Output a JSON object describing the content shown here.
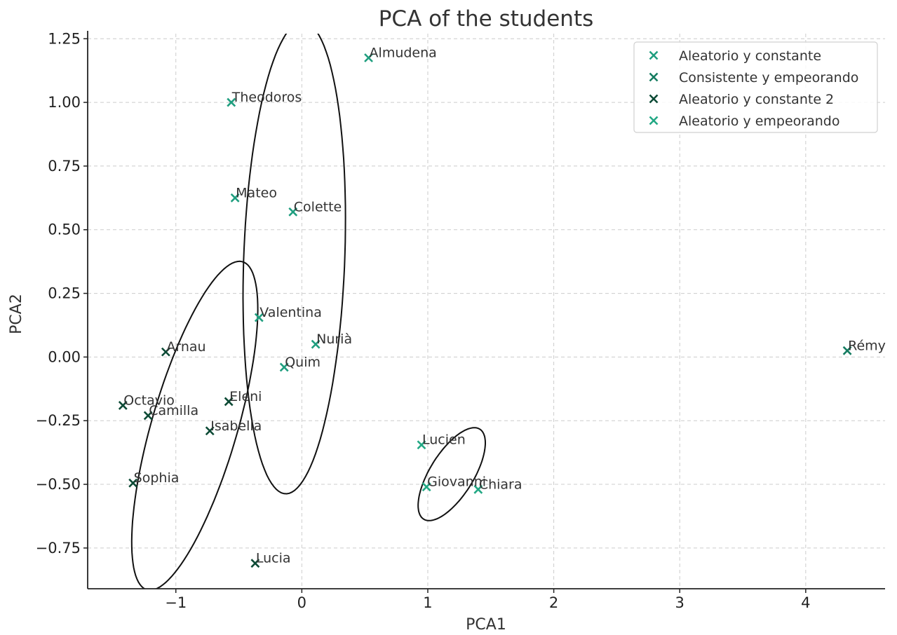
{
  "chart_data": {
    "type": "scatter",
    "title": "PCA of the students",
    "xlabel": "PCA1",
    "ylabel": "PCA2",
    "xlim": [
      -1.7,
      4.63
    ],
    "ylim": [
      -0.91,
      1.27
    ],
    "xticks": [
      -1,
      0,
      1,
      2,
      3,
      4
    ],
    "xtick_labels": [
      "−1",
      "0",
      "1",
      "2",
      "3",
      "4"
    ],
    "yticks": [
      -0.75,
      -0.5,
      -0.25,
      0.0,
      0.25,
      0.5,
      0.75,
      1.0,
      1.25
    ],
    "ytick_labels": [
      "−0.75",
      "−0.50",
      "−0.25",
      "0.00",
      "0.25",
      "0.50",
      "0.75",
      "1.00",
      "1.25"
    ],
    "grid": true,
    "legend_position": "top-right",
    "marker": "x",
    "series": [
      {
        "name": "Aleatorio y constante",
        "color": "#1f9e7f",
        "points": [
          {
            "label": "Almudena",
            "x": 0.53,
            "y": 1.175
          },
          {
            "label": "Theodoros",
            "x": -0.56,
            "y": 1.0
          },
          {
            "label": "Mateo",
            "x": -0.53,
            "y": 0.625
          },
          {
            "label": "Colette",
            "x": -0.07,
            "y": 0.57
          },
          {
            "label": "Valentina",
            "x": -0.34,
            "y": 0.155
          },
          {
            "label": "Nurià",
            "x": 0.11,
            "y": 0.05
          },
          {
            "label": "Quim",
            "x": -0.14,
            "y": -0.04
          }
        ]
      },
      {
        "name": "Consistente y empeorando",
        "color": "#157c61",
        "points": [
          {
            "label": "Rémy",
            "x": 4.33,
            "y": 0.025
          }
        ]
      },
      {
        "name": "Aleatorio y constante 2",
        "color": "#0c4a35",
        "points": [
          {
            "label": "Arnau",
            "x": -1.08,
            "y": 0.02
          },
          {
            "label": "Octavio",
            "x": -1.42,
            "y": -0.19
          },
          {
            "label": "Camilla",
            "x": -1.22,
            "y": -0.23
          },
          {
            "label": "Eleni",
            "x": -0.58,
            "y": -0.175
          },
          {
            "label": "Isabella",
            "x": -0.73,
            "y": -0.29
          },
          {
            "label": "Sophia",
            "x": -1.34,
            "y": -0.495
          },
          {
            "label": "Lucia",
            "x": -0.37,
            "y": -0.81
          }
        ]
      },
      {
        "name": "Aleatorio y empeorando",
        "color": "#22a884",
        "points": [
          {
            "label": "Lucien",
            "x": 0.95,
            "y": -0.345
          },
          {
            "label": "Giovanni",
            "x": 0.99,
            "y": -0.51
          },
          {
            "label": "Chiara",
            "x": 1.4,
            "y": -0.52
          }
        ]
      }
    ],
    "ellipses": [
      {
        "cx": -0.85,
        "cy": -0.27,
        "semi_major": 0.76,
        "semi_minor": 0.3,
        "angle_deg": 55
      },
      {
        "cx": -0.06,
        "cy": 0.39,
        "semi_major": 0.93,
        "semi_minor": 0.4,
        "angle_deg": 85
      },
      {
        "cx": 1.19,
        "cy": -0.46,
        "semi_major": 0.3,
        "semi_minor": 0.12,
        "angle_deg": 30
      }
    ]
  }
}
